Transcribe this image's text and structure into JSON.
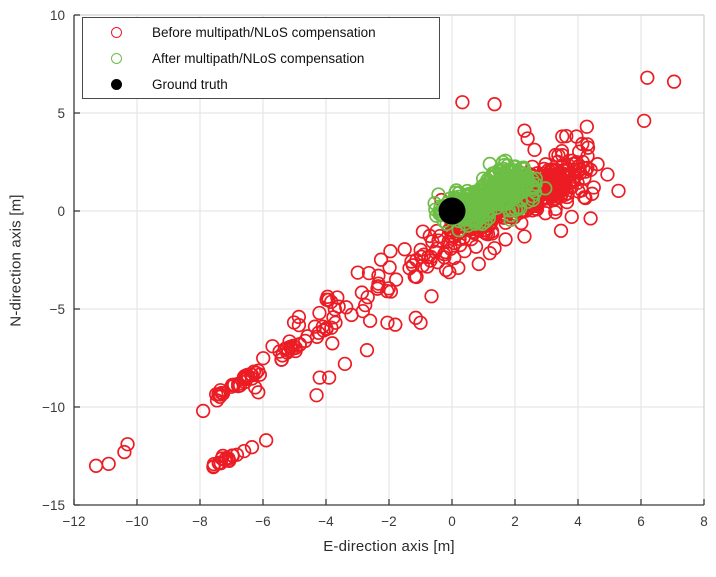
{
  "figure": {
    "xlabel": "E-direction axis [m]",
    "ylabel": "N-direction axis [m]"
  },
  "legend": {
    "items": [
      {
        "label": "Before multipath/NLoS compensation",
        "marker": "open-circle",
        "color": "#EC1C24"
      },
      {
        "label": "After multipath/NLoS compensation",
        "marker": "open-circle",
        "color": "#6CBE45"
      },
      {
        "label": "Ground truth",
        "marker": "filled-circle",
        "color": "#000000"
      }
    ]
  },
  "chart_data": {
    "type": "scatter",
    "title": "",
    "xlabel": "E-direction axis [m]",
    "ylabel": "N-direction axis [m]",
    "xlim": [
      -12,
      8
    ],
    "ylim": [
      -15,
      10
    ],
    "xticks": [
      -12,
      -10,
      -8,
      -6,
      -4,
      -2,
      0,
      2,
      4,
      6,
      8
    ],
    "yticks": [
      -15,
      -10,
      -5,
      0,
      5,
      10
    ],
    "grid": true,
    "grid_color": "#e2e2e2",
    "axis_color": "#3a3a3a",
    "box_color": "#cfcfcf",
    "legend_position": "northwest",
    "series": [
      {
        "name": "Before multipath/NLoS compensation",
        "color": "#EC1C24",
        "marker": "open-circle",
        "marker_radius_px": 6.3,
        "stroke_px": 1.7,
        "clusters": [
          {
            "type": "gauss",
            "center": [
              3.05,
              1.25
            ],
            "sigma": [
              0.78,
              0.42
            ],
            "angle": 50,
            "count": 190
          },
          {
            "type": "gauss",
            "center": [
              2.1,
              0.7
            ],
            "sigma": [
              0.75,
              0.3
            ],
            "angle": 42,
            "count": 75
          },
          {
            "type": "gauss",
            "center": [
              1.0,
              -0.35
            ],
            "sigma": [
              0.75,
              0.28
            ],
            "angle": 40,
            "count": 65
          },
          {
            "type": "gauss",
            "center": [
              2.9,
              1.2
            ],
            "sigma": [
              1.25,
              0.85
            ],
            "angle": 45,
            "count": 50
          },
          {
            "type": "line",
            "from": [
              0.9,
              -0.85
            ],
            "to": [
              -4.7,
              -6.1
            ],
            "perp": 0.45,
            "along": 0.3,
            "bias": 1.3,
            "count": 95
          },
          {
            "type": "gauss",
            "center": [
              -5.15,
              -7.0
            ],
            "sigma": [
              0.42,
              0.14
            ],
            "angle": 42,
            "count": 22
          },
          {
            "type": "line",
            "from": [
              -6.2,
              -8.15
            ],
            "to": [
              -7.45,
              -9.55
            ],
            "perp": 0.07,
            "along": 0.1,
            "count": 30
          },
          {
            "type": "line",
            "from": [
              -6.8,
              -12.4
            ],
            "to": [
              -7.6,
              -13.0
            ],
            "perp": 0.06,
            "along": 0.08,
            "count": 16
          }
        ],
        "points": [
          [
            0.33,
            5.55
          ],
          [
            1.35,
            5.45
          ],
          [
            6.2,
            6.8
          ],
          [
            7.05,
            6.6
          ],
          [
            6.1,
            4.6
          ],
          [
            2.3,
            4.1
          ],
          [
            2.4,
            3.7
          ],
          [
            3.5,
            3.8
          ],
          [
            3.95,
            3.8
          ],
          [
            3.5,
            2.85
          ],
          [
            4.28,
            4.3
          ],
          [
            4.3,
            3.4
          ],
          [
            4.15,
            2.5
          ],
          [
            4.4,
            2.1
          ],
          [
            4.5,
            1.2
          ],
          [
            4.2,
            0.7
          ],
          [
            3.8,
            -0.3
          ],
          [
            1.7,
            -1.45
          ],
          [
            2.3,
            -1.3
          ],
          [
            1.35,
            -1.9
          ],
          [
            1.2,
            -2.15
          ],
          [
            0.85,
            -2.7
          ],
          [
            0.2,
            -2.9
          ],
          [
            -0.65,
            -4.35
          ],
          [
            -1.15,
            -5.45
          ],
          [
            -4.35,
            -5.9
          ],
          [
            -4.1,
            -5.9
          ],
          [
            -3.7,
            -5.7
          ],
          [
            -2.6,
            -5.6
          ],
          [
            -2.05,
            -5.7
          ],
          [
            -1.8,
            -5.8
          ],
          [
            -1.0,
            -5.7
          ],
          [
            -3.8,
            -6.75
          ],
          [
            -2.7,
            -7.1
          ],
          [
            -3.4,
            -7.8
          ],
          [
            -4.2,
            -8.5
          ],
          [
            -3.9,
            -8.5
          ],
          [
            -4.3,
            -9.4
          ],
          [
            -6.1,
            -8.35
          ],
          [
            -6.25,
            -9.0
          ],
          [
            -6.15,
            -9.25
          ],
          [
            -7.9,
            -10.2
          ],
          [
            -6.6,
            -12.25
          ],
          [
            -6.35,
            -12.05
          ],
          [
            -5.9,
            -11.7
          ],
          [
            -11.3,
            -13.0
          ],
          [
            -10.9,
            -12.9
          ],
          [
            -10.4,
            -12.3
          ],
          [
            -10.3,
            -11.9
          ]
        ]
      },
      {
        "name": "After multipath/NLoS compensation",
        "color": "#6CBE45",
        "marker": "open-circle",
        "marker_radius_px": 6.3,
        "stroke_px": 1.7,
        "clusters": [
          {
            "type": "line",
            "from": [
              0.15,
              -0.35
            ],
            "to": [
              2.3,
              1.85
            ],
            "perp": 0.42,
            "along": 0.22,
            "count": 370
          }
        ],
        "points": [
          [
            -0.55,
            0.4
          ],
          [
            -0.3,
            -0.2
          ],
          [
            0.2,
            -0.5
          ],
          [
            0.5,
            -0.75
          ],
          [
            1.2,
            2.4
          ],
          [
            2.55,
            1.6
          ]
        ]
      },
      {
        "name": "Ground truth",
        "color": "#000000",
        "marker": "filled-circle",
        "marker_radius_px": 13.5,
        "stroke_px": 0,
        "clusters": [],
        "points": [
          [
            0,
            0
          ]
        ]
      }
    ]
  }
}
